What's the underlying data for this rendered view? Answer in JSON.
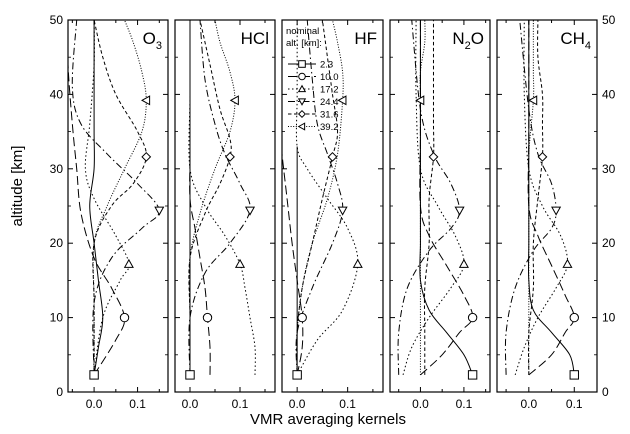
{
  "chart_data": {
    "type": "line",
    "xlabel": "VMR averaging kernels",
    "ylabel": "altitude [km]",
    "ylim": [
      0,
      50
    ],
    "yticks": [
      "0",
      "10",
      "20",
      "30",
      "40",
      "50"
    ],
    "legend": {
      "placement": "top-left of panel HF",
      "title_lines": [
        "nominal",
        "alt. [km]:"
      ],
      "entries": [
        {
          "label": "2.3",
          "marker": "square",
          "dash": "solid"
        },
        {
          "label": "10.0",
          "marker": "circle",
          "dash": "long-dash"
        },
        {
          "label": "17.2",
          "marker": "triangle-up",
          "dash": "dotted"
        },
        {
          "label": "24.4",
          "marker": "triangle-down",
          "dash": "dash-dot"
        },
        {
          "label": "31.6",
          "marker": "diamond",
          "dash": "short-dash"
        },
        {
          "label": "39.2",
          "marker": "triangle-left",
          "dash": "fine-dotted"
        }
      ]
    },
    "panels": [
      {
        "title_main": "O",
        "title_sub": "3",
        "xlim": [
          -0.06,
          0.17
        ],
        "xticks": [
          {
            "v": 0.0,
            "t": "0.0"
          },
          {
            "v": 0.1,
            "t": "0.1"
          }
        ],
        "series": [
          {
            "name": "2.3",
            "x": [
              0.0,
              0.01,
              0.02,
              0.01,
              0.0,
              -0.01,
              0.0,
              0.0,
              0.0,
              0.0
            ],
            "y": [
              2.3,
              6,
              10,
              15,
              20,
              25,
              30,
              35,
              42,
              50
            ],
            "marker_y": 2.3
          },
          {
            "name": "10.0",
            "x": [
              0.0,
              0.05,
              0.07,
              0.04,
              0.0,
              -0.03,
              -0.04,
              -0.05,
              -0.06,
              -0.06
            ],
            "y": [
              2.3,
              7,
              10,
              14,
              18,
              24,
              30,
              36,
              44,
              50
            ],
            "marker_y": 10.0
          },
          {
            "name": "17.2",
            "x": [
              0.0,
              0.02,
              0.06,
              0.08,
              0.05,
              0.0,
              -0.02,
              -0.01,
              0.0,
              0.0
            ],
            "y": [
              2.3,
              10,
              15,
              17.2,
              21,
              26,
              30,
              36,
              44,
              50
            ],
            "marker_y": 17.2
          },
          {
            "name": "24.4",
            "x": [
              0.0,
              0.0,
              0.04,
              0.11,
              0.15,
              0.1,
              0.03,
              -0.03,
              -0.05,
              -0.04
            ],
            "y": [
              2.3,
              12,
              18,
              22,
              24.4,
              28,
              32,
              36,
              41,
              50
            ],
            "marker_y": 24.4
          },
          {
            "name": "31.6",
            "x": [
              0.0,
              0.0,
              0.0,
              0.04,
              0.09,
              0.12,
              0.1,
              0.05,
              0.02,
              0.0
            ],
            "y": [
              2.3,
              12,
              20,
              25,
              28,
              31.6,
              35,
              40,
              45,
              50
            ],
            "marker_y": 31.6
          },
          {
            "name": "39.2",
            "x": [
              0.0,
              0.0,
              0.0,
              0.03,
              0.07,
              0.11,
              0.12,
              0.11,
              0.09,
              0.07
            ],
            "y": [
              2.3,
              12,
              20,
              25,
              30,
              35,
              39.2,
              43,
              47,
              50
            ],
            "marker_y": 39.2
          }
        ]
      },
      {
        "title_main": "HCl",
        "title_sub": "",
        "xlim": [
          -0.03,
          0.17
        ],
        "xticks": [
          {
            "v": 0.0,
            "t": "0.0"
          },
          {
            "v": 0.1,
            "t": "0.1"
          }
        ],
        "series": [
          {
            "name": "2.3",
            "x": [
              0.0,
              0.0,
              0.0,
              0.0,
              0.0,
              0.0,
              0.0,
              0.0,
              0.0,
              0.0
            ],
            "y": [
              2.3,
              6,
              10,
              15,
              20,
              25,
              30,
              35,
              42,
              50
            ],
            "marker_y": 2.3
          },
          {
            "name": "10.0",
            "x": [
              0.04,
              0.04,
              0.035,
              0.03,
              0.02,
              0.01,
              0.0,
              0.0,
              0.0,
              0.0
            ],
            "y": [
              2.3,
              6,
              10,
              14,
              18,
              22,
              26,
              32,
              40,
              50
            ],
            "marker_y": 10.0
          },
          {
            "name": "17.2",
            "x": [
              0.13,
              0.13,
              0.12,
              0.11,
              0.1,
              0.07,
              0.03,
              0.0,
              0.0,
              0.0
            ],
            "y": [
              2.3,
              6,
              10,
              14,
              17.2,
              21,
              25,
              30,
              40,
              50
            ],
            "marker_y": 17.2
          },
          {
            "name": "24.4",
            "x": [
              0.0,
              0.0,
              0.03,
              0.08,
              0.12,
              0.1,
              0.07,
              0.05,
              0.03,
              0.02
            ],
            "y": [
              2.3,
              10,
              16,
              20,
              24.4,
              28,
              32,
              36,
              42,
              50
            ],
            "marker_y": 24.4
          },
          {
            "name": "31.6",
            "x": [
              0.0,
              0.0,
              0.0,
              0.03,
              0.06,
              0.08,
              0.08,
              0.06,
              0.04,
              0.02
            ],
            "y": [
              2.3,
              10,
              18,
              24,
              28,
              31.6,
              34,
              38,
              44,
              50
            ],
            "marker_y": 31.6
          },
          {
            "name": "39.2",
            "x": [
              0.0,
              0.0,
              0.0,
              0.02,
              0.05,
              0.08,
              0.09,
              0.08,
              0.06,
              0.05
            ],
            "y": [
              2.3,
              10,
              18,
              24,
              30,
              35,
              39.2,
              43,
              47,
              50
            ],
            "marker_y": 39.2
          }
        ]
      },
      {
        "title_main": "HF",
        "title_sub": "",
        "xlim": [
          -0.03,
          0.17
        ],
        "xticks": [
          {
            "v": 0.0,
            "t": "0.0"
          },
          {
            "v": 0.1,
            "t": "0.1"
          }
        ],
        "series": [
          {
            "name": "2.3",
            "x": [
              0.0,
              0.0,
              0.0,
              0.0,
              0.0,
              0.0,
              0.0,
              0.0
            ],
            "y": [
              2.3,
              6,
              10,
              15,
              20,
              25,
              30,
              33
            ],
            "marker_y": 2.3
          },
          {
            "name": "10.0",
            "x": [
              0.0,
              0.01,
              0.01,
              0.0,
              -0.01,
              -0.02,
              -0.03,
              -0.03
            ],
            "y": [
              2.3,
              6,
              10,
              15,
              20,
              26,
              32,
              33
            ],
            "marker_y": 10.0
          },
          {
            "name": "17.2",
            "x": [
              0.0,
              0.04,
              0.09,
              0.12,
              0.1,
              0.06,
              0.02,
              0.0,
              0.0,
              0.0
            ],
            "y": [
              2.3,
              7,
              11,
              17.2,
              22,
              26,
              30,
              33,
              40,
              50
            ],
            "marker_y": 17.2
          },
          {
            "name": "24.4",
            "x": [
              0.0,
              0.0,
              0.03,
              0.07,
              0.09,
              0.08,
              0.06,
              0.04,
              0.03,
              0.02
            ],
            "y": [
              2.3,
              8,
              14,
              20,
              24.4,
              28,
              32,
              36,
              42,
              50
            ],
            "marker_y": 24.4
          },
          {
            "name": "31.6",
            "x": [
              0.0,
              0.0,
              0.01,
              0.03,
              0.05,
              0.07,
              0.08,
              0.07,
              0.06,
              0.05
            ],
            "y": [
              2.3,
              8,
              14,
              20,
              26,
              31.6,
              35,
              40,
              45,
              50
            ],
            "marker_y": 31.6
          },
          {
            "name": "39.2",
            "x": [
              0.0,
              0.0,
              0.01,
              0.03,
              0.06,
              0.08,
              0.09,
              0.09,
              0.08,
              0.07
            ],
            "y": [
              2.3,
              8,
              14,
              20,
              26,
              32,
              39.2,
              43,
              47,
              50
            ],
            "marker_y": 39.2
          }
        ]
      },
      {
        "title_main": "N",
        "title_sub": "2",
        "title_tail": "O",
        "xlim": [
          -0.07,
          0.16
        ],
        "xticks": [
          {
            "v": 0.0,
            "t": "0.0"
          },
          {
            "v": 0.1,
            "t": "0.1"
          }
        ],
        "series": [
          {
            "name": "2.3",
            "x": [
              0.12,
              0.1,
              0.06,
              0.02,
              0.0,
              0.0,
              0.0,
              0.0,
              0.0,
              0.0
            ],
            "y": [
              2.3,
              5,
              8,
              11,
              15,
              20,
              25,
              30,
              40,
              50
            ],
            "marker_y": 2.3
          },
          {
            "name": "10.0",
            "x": [
              0.0,
              0.05,
              0.09,
              0.12,
              0.1,
              0.06,
              0.02,
              0.0,
              0.0,
              0.0
            ],
            "y": [
              2.3,
              5,
              8,
              10.0,
              13,
              17,
              21,
              25,
              35,
              50
            ],
            "marker_y": 10.0
          },
          {
            "name": "17.2",
            "x": [
              -0.04,
              -0.02,
              0.02,
              0.07,
              0.1,
              0.08,
              0.04,
              0.0,
              -0.01,
              -0.01
            ],
            "y": [
              2.3,
              6,
              10,
              14,
              17.2,
              21,
              25,
              30,
              40,
              50
            ],
            "marker_y": 17.2
          },
          {
            "name": "24.4",
            "x": [
              -0.05,
              -0.05,
              -0.03,
              0.02,
              0.07,
              0.09,
              0.07,
              0.03,
              0.0,
              -0.02
            ],
            "y": [
              2.3,
              8,
              14,
              19,
              22,
              24.4,
              28,
              32,
              38,
              50
            ],
            "marker_y": 24.4
          },
          {
            "name": "31.6",
            "x": [
              0.01,
              0.01,
              0.01,
              0.02,
              0.02,
              0.03,
              0.03,
              0.03,
              0.03,
              0.03
            ],
            "y": [
              2.3,
              8,
              14,
              20,
              26,
              31.6,
              36,
              40,
              45,
              50
            ],
            "marker_y": 31.6
          },
          {
            "name": "39.2",
            "x": [
              0.0,
              0.0,
              0.0,
              0.0,
              0.0,
              0.0,
              0.0,
              0.0,
              0.01,
              0.01
            ],
            "y": [
              2.3,
              8,
              14,
              20,
              26,
              32,
              39.2,
              43,
              47,
              50
            ],
            "marker_y": 39.2
          }
        ]
      },
      {
        "title_main": "CH",
        "title_sub": "4",
        "xlim": [
          -0.07,
          0.15
        ],
        "xticks": [
          {
            "v": 0.0,
            "t": "0.0"
          },
          {
            "v": 0.1,
            "t": "0.1"
          }
        ],
        "series": [
          {
            "name": "2.3",
            "x": [
              0.1,
              0.09,
              0.05,
              0.01,
              0.0,
              0.0,
              0.0,
              0.0,
              0.0,
              0.0
            ],
            "y": [
              2.3,
              5,
              8,
              11,
              15,
              20,
              25,
              30,
              40,
              50
            ],
            "marker_y": 2.3
          },
          {
            "name": "10.0",
            "x": [
              0.0,
              0.05,
              0.08,
              0.1,
              0.08,
              0.05,
              0.02,
              0.0,
              0.0,
              0.0
            ],
            "y": [
              2.3,
              5,
              8,
              10.0,
              13,
              17,
              21,
              25,
              35,
              50
            ],
            "marker_y": 10.0
          },
          {
            "name": "17.2",
            "x": [
              -0.03,
              -0.01,
              0.02,
              0.06,
              0.085,
              0.07,
              0.03,
              0.0,
              -0.01,
              -0.01
            ],
            "y": [
              2.3,
              6,
              10,
              14,
              17.2,
              21,
              25,
              30,
              40,
              50
            ],
            "marker_y": 17.2
          },
          {
            "name": "24.4",
            "x": [
              -0.05,
              -0.05,
              -0.03,
              0.01,
              0.05,
              0.06,
              0.05,
              0.02,
              0.0,
              -0.02
            ],
            "y": [
              2.3,
              8,
              14,
              19,
              22,
              24.4,
              28,
              32,
              38,
              50
            ],
            "marker_y": 24.4
          },
          {
            "name": "31.6",
            "x": [
              0.0,
              0.0,
              0.01,
              0.01,
              0.02,
              0.03,
              0.03,
              0.03,
              0.02,
              0.02
            ],
            "y": [
              2.3,
              8,
              14,
              20,
              26,
              31.6,
              36,
              40,
              45,
              50
            ],
            "marker_y": 31.6
          },
          {
            "name": "39.2",
            "x": [
              0.0,
              0.0,
              0.0,
              0.0,
              0.0,
              0.0,
              0.01,
              0.01,
              0.01,
              0.01
            ],
            "y": [
              2.3,
              8,
              14,
              20,
              26,
              32,
              39.2,
              43,
              47,
              50
            ],
            "marker_y": 39.2
          }
        ]
      }
    ]
  }
}
